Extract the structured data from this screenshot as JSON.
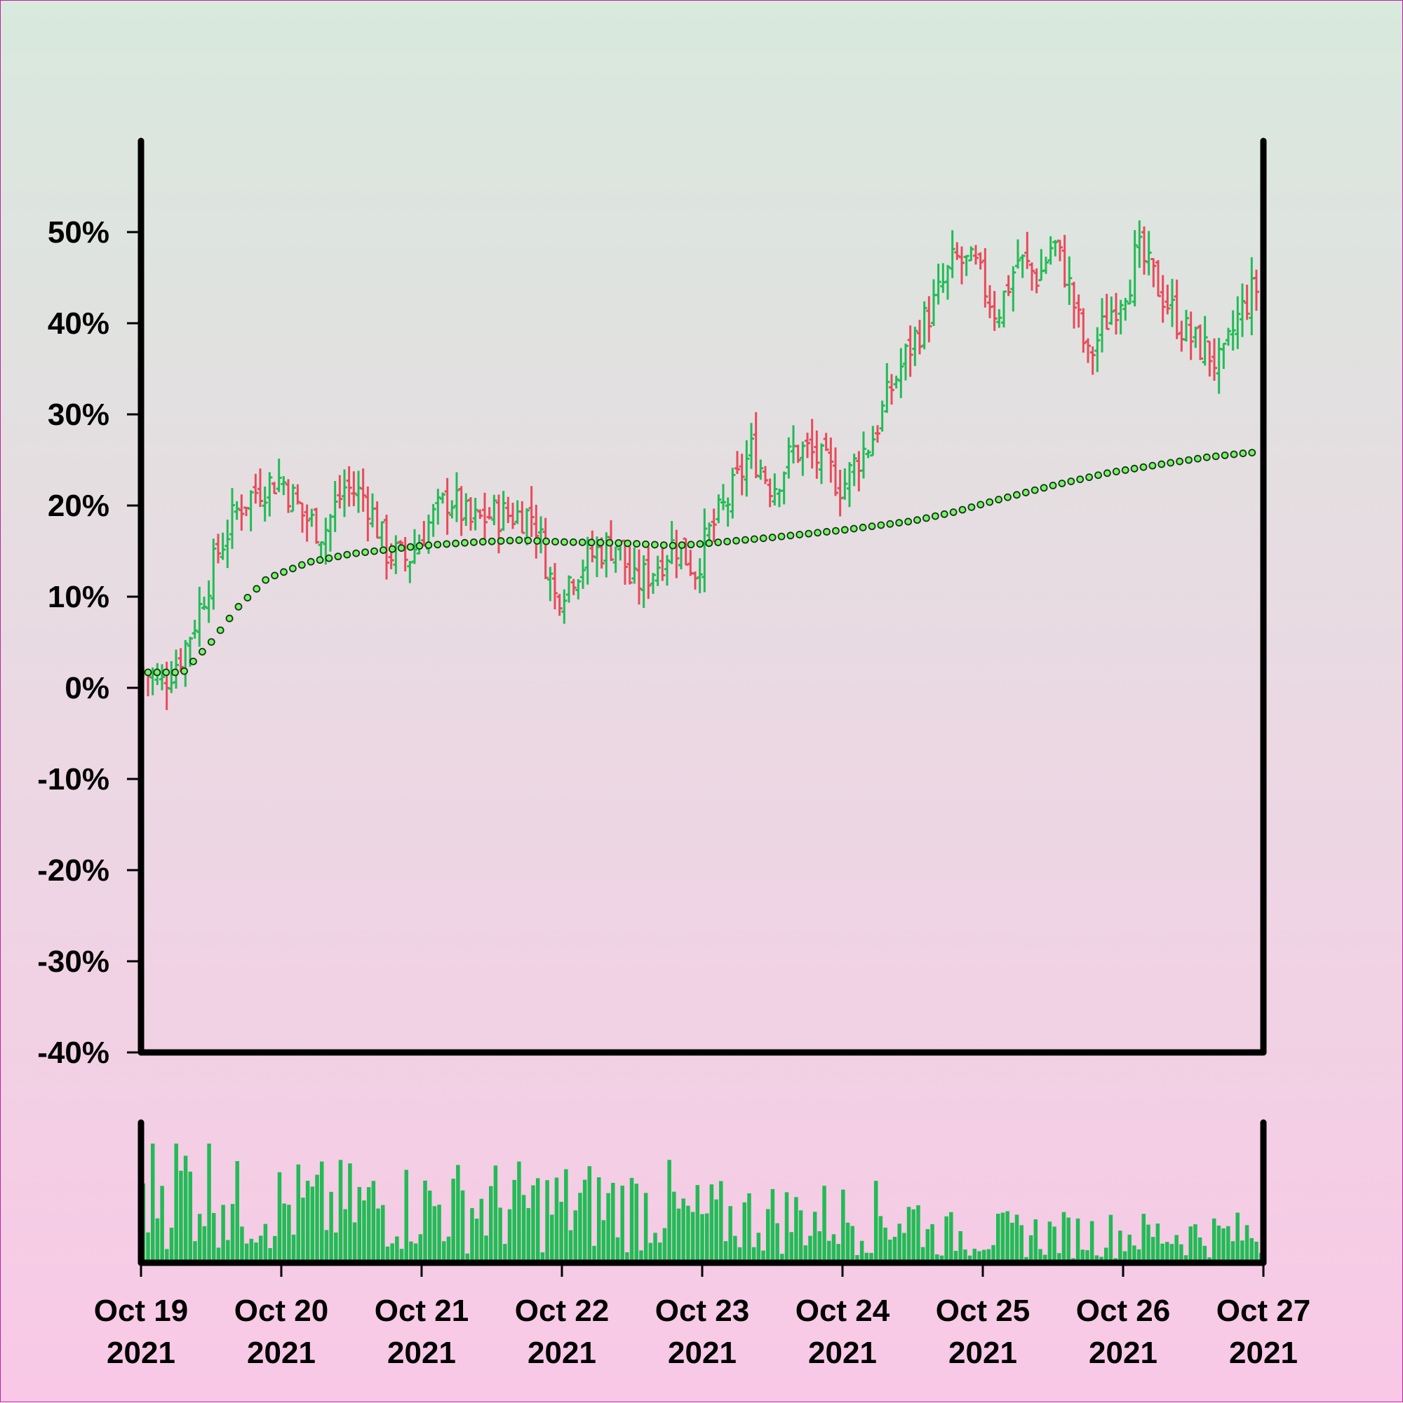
{
  "colors": {
    "up": "#22bb55",
    "down": "#e84a5a",
    "ma_fill": "#7cf06a",
    "ma_stroke": "#0c3a10",
    "volume": "#22bb55",
    "axis": "#000000"
  },
  "chart_data": {
    "type": "ohlc",
    "ylim": [
      -40,
      60
    ],
    "y_ticks": [
      "50%",
      "40%",
      "30%",
      "20%",
      "10%",
      "0%",
      "-10%",
      "-20%",
      "-30%",
      "-40%"
    ],
    "y_tick_values": [
      50,
      40,
      30,
      20,
      10,
      0,
      -10,
      -20,
      -30,
      -40
    ],
    "x_ticks": [
      {
        "day": 0,
        "line1": "Oct 19",
        "line2": "2021"
      },
      {
        "day": 1,
        "line1": "Oct 20",
        "line2": "2021"
      },
      {
        "day": 2,
        "line1": "Oct 21",
        "line2": "2021"
      },
      {
        "day": 3,
        "line1": "Oct 22",
        "line2": "2021"
      },
      {
        "day": 4,
        "line1": "Oct 23",
        "line2": "2021"
      },
      {
        "day": 5,
        "line1": "Oct 24",
        "line2": "2021"
      },
      {
        "day": 6,
        "line1": "Oct 25",
        "line2": "2021"
      },
      {
        "day": 7,
        "line1": "Oct 26",
        "line2": "2021"
      },
      {
        "day": 8,
        "line1": "Oct 27",
        "line2": "2021"
      }
    ],
    "xlim": [
      "Oct 19 2021",
      "Oct 27 2021"
    ],
    "close_path": [
      [
        0,
        2
      ],
      [
        0.15,
        0.5
      ],
      [
        0.3,
        4
      ],
      [
        0.4,
        8
      ],
      [
        0.55,
        15
      ],
      [
        0.7,
        20
      ],
      [
        0.85,
        22
      ],
      [
        1.0,
        23
      ],
      [
        1.15,
        19
      ],
      [
        1.3,
        17
      ],
      [
        1.45,
        22
      ],
      [
        1.6,
        21
      ],
      [
        1.75,
        15
      ],
      [
        1.9,
        14
      ],
      [
        2.05,
        18
      ],
      [
        2.2,
        21
      ],
      [
        2.35,
        18
      ],
      [
        2.5,
        19
      ],
      [
        2.65,
        19
      ],
      [
        2.8,
        19
      ],
      [
        2.95,
        10
      ],
      [
        3.1,
        13
      ],
      [
        3.25,
        15
      ],
      [
        3.4,
        16
      ],
      [
        3.5,
        11
      ],
      [
        3.65,
        13
      ],
      [
        3.8,
        16
      ],
      [
        3.95,
        13
      ],
      [
        4.05,
        17
      ],
      [
        4.2,
        21
      ],
      [
        4.35,
        26
      ],
      [
        4.5,
        22
      ],
      [
        4.65,
        26
      ],
      [
        4.75,
        26
      ],
      [
        4.9,
        24
      ],
      [
        5.0,
        22
      ],
      [
        5.1,
        25
      ],
      [
        5.2,
        27
      ],
      [
        5.35,
        33
      ],
      [
        5.5,
        38
      ],
      [
        5.65,
        42
      ],
      [
        5.8,
        47
      ],
      [
        5.95,
        46
      ],
      [
        6.1,
        41
      ],
      [
        6.25,
        47
      ],
      [
        6.4,
        45
      ],
      [
        6.5,
        49
      ],
      [
        6.6,
        45
      ],
      [
        6.75,
        36
      ],
      [
        6.9,
        41
      ],
      [
        7.05,
        45
      ],
      [
        7.1,
        48
      ],
      [
        7.25,
        44
      ],
      [
        7.4,
        40
      ],
      [
        7.5,
        38
      ],
      [
        7.6,
        37
      ],
      [
        7.7,
        35
      ],
      [
        7.8,
        40
      ],
      [
        7.9,
        43
      ],
      [
        7.96,
        44
      ]
    ],
    "moving_average": [
      [
        0,
        1.7
      ],
      [
        0.3,
        1.7
      ],
      [
        0.5,
        5
      ],
      [
        0.7,
        9
      ],
      [
        0.9,
        12
      ],
      [
        1.2,
        13.8
      ],
      [
        1.5,
        14.7
      ],
      [
        2.0,
        15.6
      ],
      [
        2.4,
        16
      ],
      [
        2.7,
        16.2
      ],
      [
        3.0,
        16
      ],
      [
        3.4,
        15.9
      ],
      [
        3.8,
        15.6
      ],
      [
        4.0,
        15.8
      ],
      [
        4.5,
        16.5
      ],
      [
        5.0,
        17.3
      ],
      [
        5.5,
        18.3
      ],
      [
        5.8,
        19.3
      ],
      [
        6.1,
        20.6
      ],
      [
        6.5,
        22.2
      ],
      [
        6.9,
        23.6
      ],
      [
        7.3,
        24.6
      ],
      [
        7.6,
        25.3
      ],
      [
        7.9,
        25.8
      ]
    ],
    "bars_per_day": 30,
    "seed": 7
  }
}
